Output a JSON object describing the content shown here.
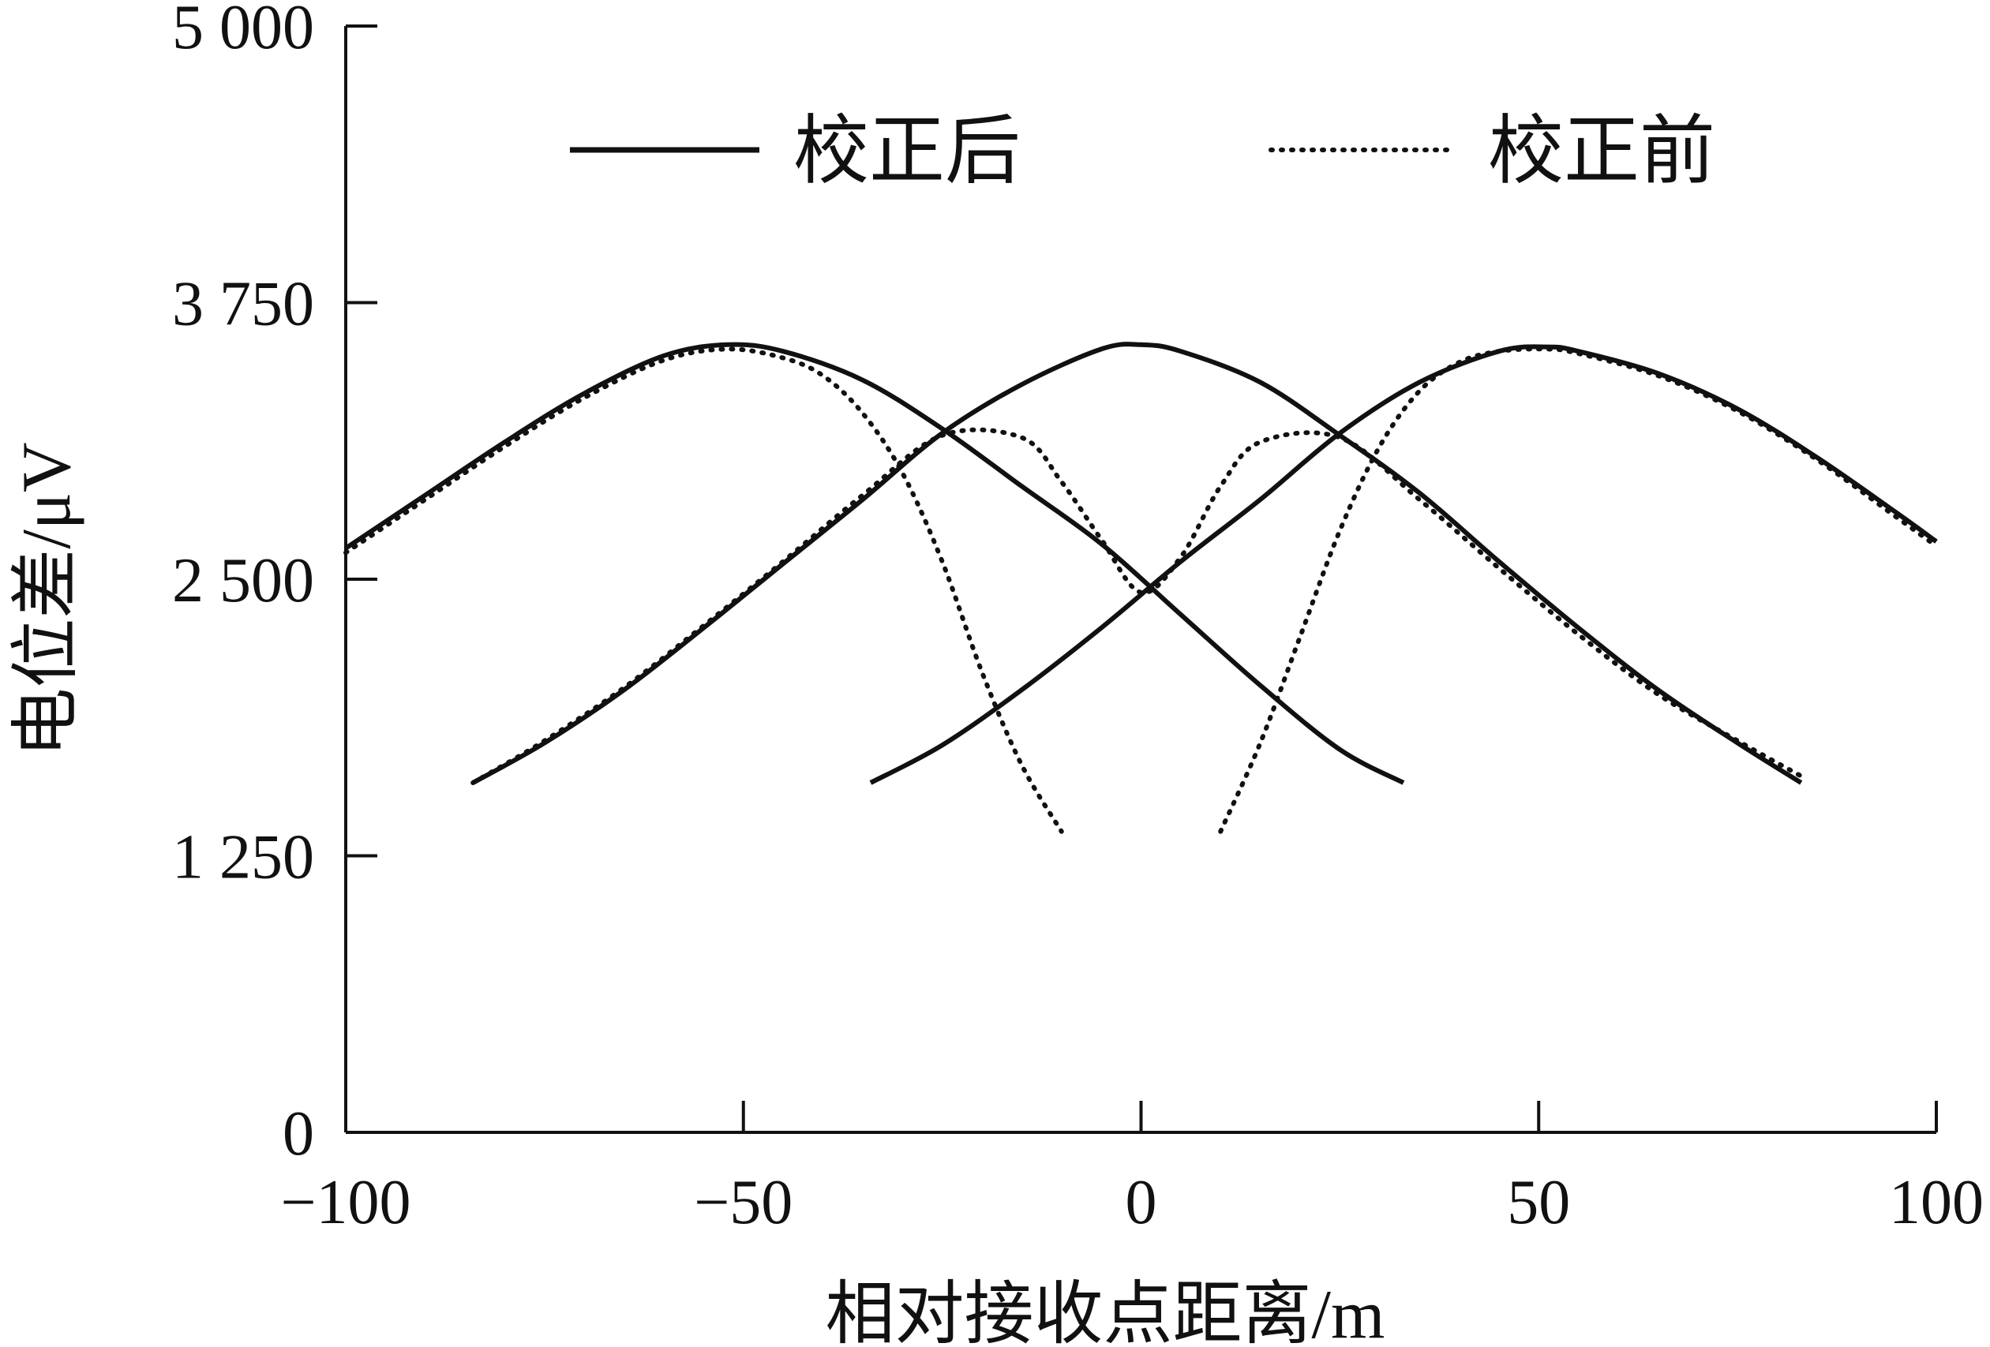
{
  "chart_data": {
    "type": "line",
    "xlabel": "相对接收点距离/m",
    "ylabel": "电位差/μV",
    "xlim": [
      -100,
      100
    ],
    "ylim": [
      0,
      5000
    ],
    "x_ticks": [
      -100,
      -50,
      0,
      50,
      100
    ],
    "x_tick_labels": [
      "−100",
      "−50",
      "0",
      "50",
      "100"
    ],
    "y_ticks": [
      0,
      1250,
      2500,
      3750,
      5000
    ],
    "y_tick_labels": [
      "0",
      "1 250",
      "2 500",
      "3 750",
      "5 000"
    ],
    "grid": false,
    "legend_position": "top",
    "legend": [
      {
        "label": "校正后",
        "style": "solid"
      },
      {
        "label": "校正前",
        "style": "dotted"
      }
    ],
    "series": [
      {
        "group": "校正后",
        "style": "solid",
        "color": "#111111",
        "x": [
          -100,
          -90,
          -80,
          -70,
          -60,
          -52,
          -45,
          -35,
          -25,
          -15,
          -5,
          5,
          15,
          25,
          33
        ],
        "y": [
          2640,
          2880,
          3120,
          3340,
          3510,
          3560,
          3530,
          3400,
          3180,
          2920,
          2660,
          2340,
          2020,
          1730,
          1580
        ]
      },
      {
        "group": "校正后",
        "style": "solid",
        "color": "#111111",
        "x": [
          -84,
          -75,
          -65,
          -55,
          -45,
          -35,
          -25,
          -15,
          -5,
          0,
          5,
          15,
          25,
          35,
          45,
          55,
          65,
          75,
          83
        ],
        "y": [
          1580,
          1760,
          2000,
          2280,
          2570,
          2860,
          3160,
          3380,
          3540,
          3560,
          3530,
          3390,
          3150,
          2890,
          2580,
          2280,
          2000,
          1760,
          1580
        ]
      },
      {
        "group": "校正后",
        "style": "solid",
        "color": "#111111",
        "x": [
          -34,
          -25,
          -15,
          -5,
          5,
          15,
          25,
          35,
          45,
          51,
          55,
          65,
          75,
          85,
          95,
          100
        ],
        "y": [
          1580,
          1750,
          2000,
          2280,
          2580,
          2860,
          3160,
          3390,
          3530,
          3550,
          3530,
          3430,
          3270,
          3050,
          2800,
          2670
        ]
      },
      {
        "group": "校正前",
        "style": "dotted",
        "color": "#111111",
        "x": [
          -100,
          -90,
          -80,
          -70,
          -60,
          -52,
          -45,
          -40,
          -35,
          -30,
          -25,
          -20,
          -15,
          -10
        ],
        "y": [
          2620,
          2860,
          3100,
          3320,
          3490,
          3540,
          3500,
          3420,
          3250,
          2980,
          2580,
          2080,
          1660,
          1360
        ]
      },
      {
        "group": "校正前",
        "style": "dotted",
        "color": "#111111",
        "x": [
          -84,
          -75,
          -65,
          -55,
          -45,
          -35,
          -25,
          -15,
          -10,
          -5,
          0,
          5,
          10,
          15,
          25,
          35,
          45,
          55,
          65,
          75,
          83
        ],
        "y": [
          1580,
          1770,
          2010,
          2290,
          2580,
          2880,
          3150,
          3140,
          2940,
          2680,
          2440,
          2600,
          2920,
          3120,
          3140,
          2860,
          2550,
          2250,
          1980,
          1770,
          1610
        ]
      },
      {
        "group": "校正前",
        "style": "dotted",
        "color": "#111111",
        "x": [
          10,
          15,
          20,
          25,
          30,
          35,
          40,
          45,
          51,
          55,
          65,
          75,
          85,
          95,
          100
        ],
        "y": [
          1360,
          1760,
          2240,
          2720,
          3100,
          3350,
          3480,
          3530,
          3540,
          3520,
          3420,
          3260,
          3040,
          2780,
          2650
        ]
      }
    ]
  }
}
